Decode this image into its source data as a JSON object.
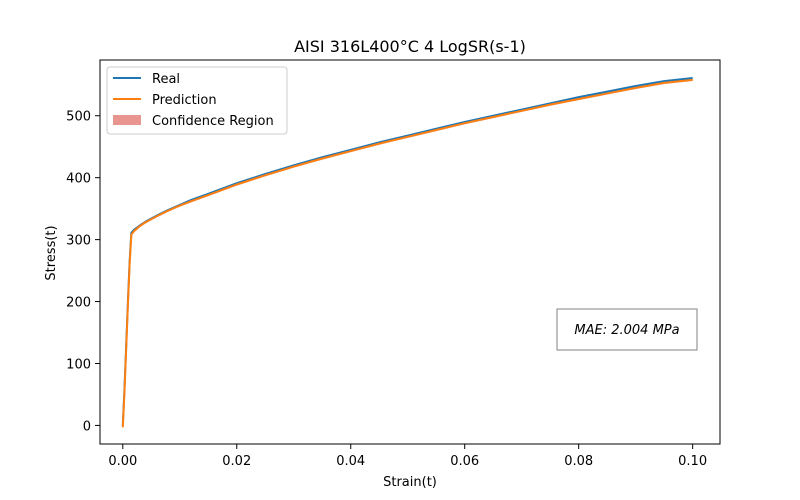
{
  "chart_data": {
    "type": "line",
    "title": "AISI 316L400°C 4 LogSR(s-1)",
    "xlabel": "Strain(t)",
    "ylabel": "Stress(t)",
    "xlim": [
      -0.004,
      0.1048
    ],
    "ylim": [
      -30,
      590
    ],
    "xticks": [
      "0.00",
      "0.02",
      "0.04",
      "0.06",
      "0.08",
      "0.10"
    ],
    "yticks": [
      "0",
      "100",
      "200",
      "300",
      "400",
      "500"
    ],
    "xtick_values": [
      0.0,
      0.02,
      0.04,
      0.06,
      0.08,
      0.1
    ],
    "ytick_values": [
      0,
      100,
      200,
      300,
      400,
      500
    ],
    "grid": false,
    "legend_position": "upper-left",
    "legend": [
      "Real",
      "Prediction",
      "Confidence Region"
    ],
    "annotation": "MAE: 2.004 MPa",
    "series": [
      {
        "name": "Real",
        "color": "#1f77b4",
        "x": [
          0.0,
          0.0003,
          0.0006,
          0.0009,
          0.0012,
          0.0015,
          0.002,
          0.003,
          0.004,
          0.005,
          0.006,
          0.008,
          0.01,
          0.012,
          0.015,
          0.02,
          0.025,
          0.03,
          0.035,
          0.04,
          0.045,
          0.05,
          0.055,
          0.06,
          0.065,
          0.07,
          0.075,
          0.08,
          0.085,
          0.09,
          0.095,
          0.1
        ],
        "y": [
          0,
          60,
          130,
          200,
          265,
          311,
          316,
          323,
          329,
          334,
          339,
          348,
          356,
          364,
          374,
          391,
          406,
          420,
          433,
          445,
          457,
          468,
          479,
          490,
          500,
          510,
          520,
          530,
          539,
          548,
          556,
          561
        ]
      },
      {
        "name": "Prediction",
        "color": "#ff7f0e",
        "x": [
          0.0,
          0.0003,
          0.0006,
          0.0009,
          0.0012,
          0.0015,
          0.002,
          0.003,
          0.004,
          0.005,
          0.006,
          0.008,
          0.01,
          0.012,
          0.015,
          0.02,
          0.025,
          0.03,
          0.035,
          0.04,
          0.045,
          0.05,
          0.055,
          0.06,
          0.065,
          0.07,
          0.075,
          0.08,
          0.085,
          0.09,
          0.095,
          0.1
        ],
        "y": [
          -3,
          55,
          125,
          195,
          260,
          308,
          314,
          322,
          328,
          333,
          338,
          347,
          355,
          362,
          372,
          389,
          404,
          418,
          431,
          443,
          455,
          466,
          477,
          488,
          498,
          508,
          518,
          527,
          536,
          545,
          553,
          558
        ]
      }
    ],
    "confidence_color": "#e8948f"
  }
}
